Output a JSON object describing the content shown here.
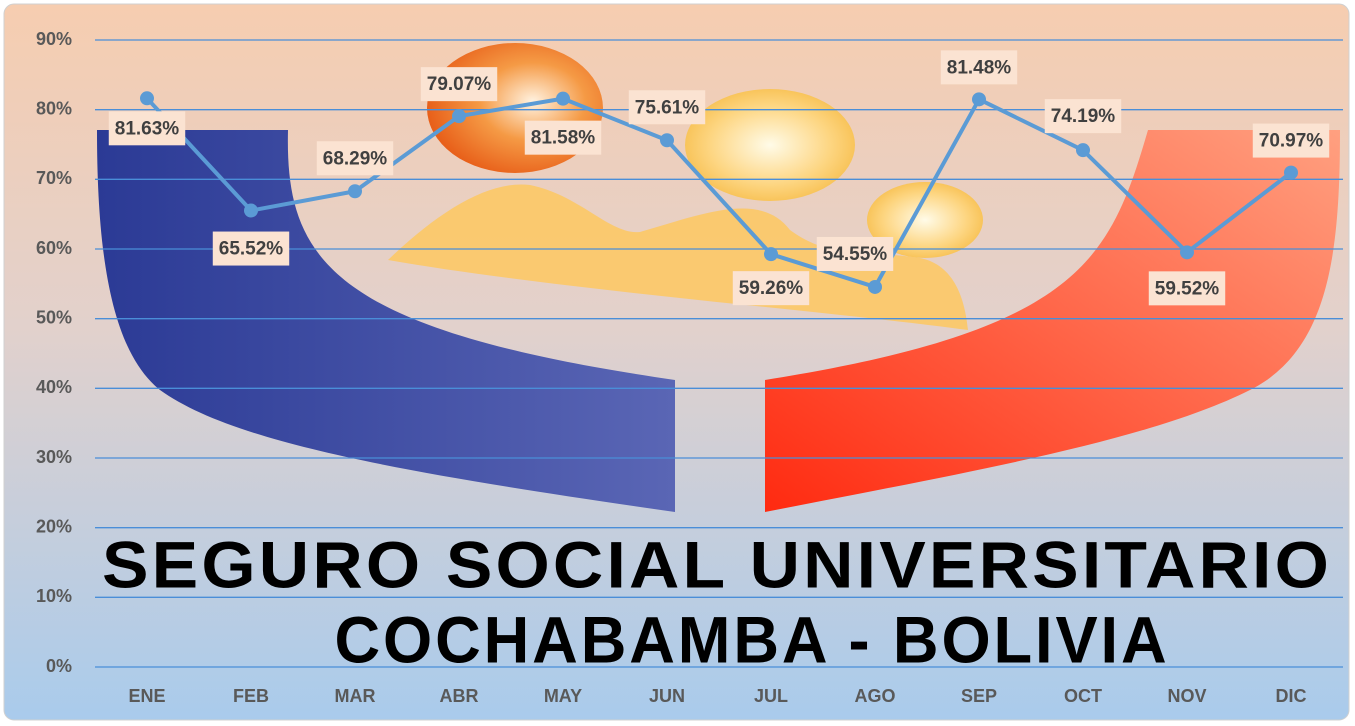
{
  "chart_data": {
    "type": "line",
    "categories": [
      "ENE",
      "FEB",
      "MAR",
      "ABR",
      "MAY",
      "JUN",
      "JUL",
      "AGO",
      "SEP",
      "OCT",
      "NOV",
      "DIC"
    ],
    "series": [
      {
        "color": "#5b9bd5",
        "values": [
          81.63,
          65.52,
          68.29,
          79.07,
          81.58,
          75.61,
          59.26,
          54.55,
          81.48,
          74.19,
          59.52,
          70.97
        ],
        "value_labels": [
          "81.63%",
          "65.52%",
          "68.29%",
          "79.07%",
          "81.58%",
          "75.61%",
          "59.26%",
          "54.55%",
          "81.48%",
          "74.19%",
          "59.52%",
          "70.97%"
        ]
      }
    ],
    "ylim": [
      0,
      90
    ],
    "yticks": [
      {
        "value": 0,
        "label": "0%"
      },
      {
        "value": 10,
        "label": "10%"
      },
      {
        "value": 20,
        "label": "20%"
      },
      {
        "value": 30,
        "label": "30%"
      },
      {
        "value": 40,
        "label": "40%"
      },
      {
        "value": 50,
        "label": "50%"
      },
      {
        "value": 60,
        "label": "60%"
      },
      {
        "value": 70,
        "label": "70%"
      },
      {
        "value": 80,
        "label": "80%"
      },
      {
        "value": 90,
        "label": "90%"
      }
    ],
    "grid": true,
    "annotations": [
      "SEGURO SOCIAL UNIVERSITARIO",
      "COCHABAMBA - BOLIVIA"
    ]
  }
}
